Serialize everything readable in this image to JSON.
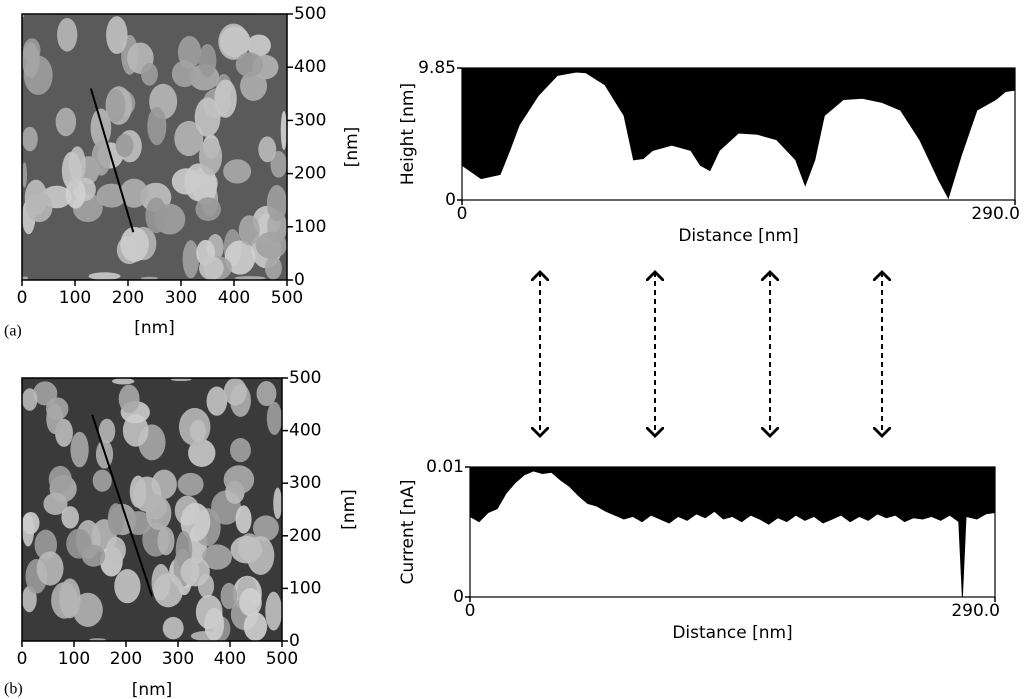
{
  "chart_data": [
    {
      "type": "image",
      "panel_label": "(a)",
      "xlabel": "[nm]",
      "ylabel": "[nm]",
      "xlim": [
        0,
        500
      ],
      "ylim": [
        0,
        500
      ],
      "xticks": [
        0,
        100,
        200,
        300,
        400,
        500
      ],
      "yticks": [
        0,
        100,
        200,
        300,
        400,
        500
      ]
    },
    {
      "type": "image",
      "panel_label": "(b)",
      "xlabel": "[nm]",
      "ylabel": "[nm]",
      "xlim": [
        0,
        500
      ],
      "ylim": [
        0,
        500
      ],
      "xticks": [
        0,
        100,
        200,
        300,
        400,
        500
      ],
      "yticks": [
        0,
        100,
        200,
        300,
        400,
        500
      ]
    },
    {
      "type": "area",
      "xlabel": "Distance [nm]",
      "ylabel": "Height [nm]",
      "color": "#000000",
      "xlim": [
        0,
        290
      ],
      "ylim": [
        0,
        9.85
      ],
      "xticks": [
        0,
        {
          "value": 290,
          "label": "290.0"
        }
      ],
      "yticks": [
        0,
        9.85
      ],
      "x": [
        0,
        10,
        20,
        25,
        30,
        40,
        50,
        60,
        65,
        75,
        85,
        90,
        95,
        100,
        110,
        120,
        125,
        130,
        135,
        145,
        155,
        165,
        175,
        180,
        185,
        190,
        200,
        210,
        220,
        230,
        240,
        250,
        255,
        262,
        270,
        280,
        285,
        290
      ],
      "values": [
        2.6,
        1.6,
        1.9,
        3.7,
        5.6,
        7.8,
        9.3,
        9.55,
        9.5,
        8.6,
        6.3,
        3.0,
        3.1,
        3.7,
        4.1,
        3.7,
        2.6,
        2.2,
        3.7,
        5.0,
        4.9,
        4.5,
        3.0,
        1.1,
        3.0,
        6.3,
        7.5,
        7.6,
        7.3,
        6.7,
        4.5,
        1.5,
        0.15,
        3.4,
        6.7,
        7.5,
        8.1,
        8.2
      ]
    },
    {
      "type": "area",
      "xlabel": "Distance [nm]",
      "ylabel": "Current [nA]",
      "color": "#000000",
      "xlim": [
        0,
        290
      ],
      "ylim": [
        0,
        0.01
      ],
      "xticks": [
        0,
        {
          "value": 290,
          "label": "290.0"
        }
      ],
      "yticks": [
        0,
        0.01
      ],
      "x": [
        0,
        5,
        10,
        15,
        20,
        25,
        30,
        35,
        40,
        45,
        50,
        55,
        60,
        65,
        70,
        75,
        80,
        85,
        90,
        95,
        100,
        105,
        110,
        115,
        120,
        125,
        130,
        135,
        140,
        145,
        150,
        155,
        160,
        165,
        170,
        175,
        180,
        185,
        190,
        195,
        200,
        205,
        210,
        215,
        220,
        225,
        230,
        235,
        240,
        245,
        250,
        255,
        260,
        265,
        270,
        272,
        274,
        280,
        285,
        290
      ],
      "values": [
        0.0062,
        0.0058,
        0.0065,
        0.0068,
        0.008,
        0.0088,
        0.0094,
        0.0097,
        0.0095,
        0.0096,
        0.009,
        0.0085,
        0.0078,
        0.0072,
        0.007,
        0.0066,
        0.0063,
        0.006,
        0.0062,
        0.0058,
        0.0063,
        0.006,
        0.0057,
        0.0062,
        0.0059,
        0.0064,
        0.0061,
        0.0066,
        0.006,
        0.0062,
        0.0058,
        0.0063,
        0.006,
        0.0056,
        0.0061,
        0.0058,
        0.0063,
        0.0059,
        0.0062,
        0.0057,
        0.006,
        0.0063,
        0.0058,
        0.0062,
        0.0059,
        0.0064,
        0.0061,
        0.0063,
        0.0058,
        0.0061,
        0.006,
        0.0062,
        0.0059,
        0.0063,
        0.0058,
        0,
        0.0062,
        0.006,
        0.0064,
        0.0065
      ]
    }
  ]
}
